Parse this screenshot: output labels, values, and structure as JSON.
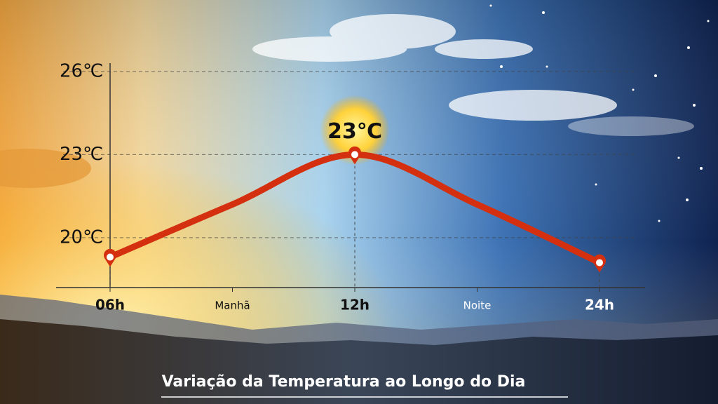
{
  "chart_data": {
    "type": "line",
    "title": "Variação da Temperatura ao Longo do Dia",
    "categories": [
      "06h",
      "Manhã",
      "12h",
      "Noite",
      "24h"
    ],
    "series": [
      {
        "name": "Temperatura",
        "color": "#d4300f",
        "values": [
          19.3,
          21.2,
          23,
          21.2,
          19.1
        ],
        "value_labels": [
          null,
          null,
          "23℃",
          null,
          null
        ]
      }
    ],
    "ylim": [
      18.2,
      26.3
    ],
    "yticks": [
      {
        "value": 20,
        "label": "20℃"
      },
      {
        "value": 23,
        "label": "23℃"
      },
      {
        "value": 26,
        "label": "26℃"
      }
    ],
    "grid": true
  }
}
